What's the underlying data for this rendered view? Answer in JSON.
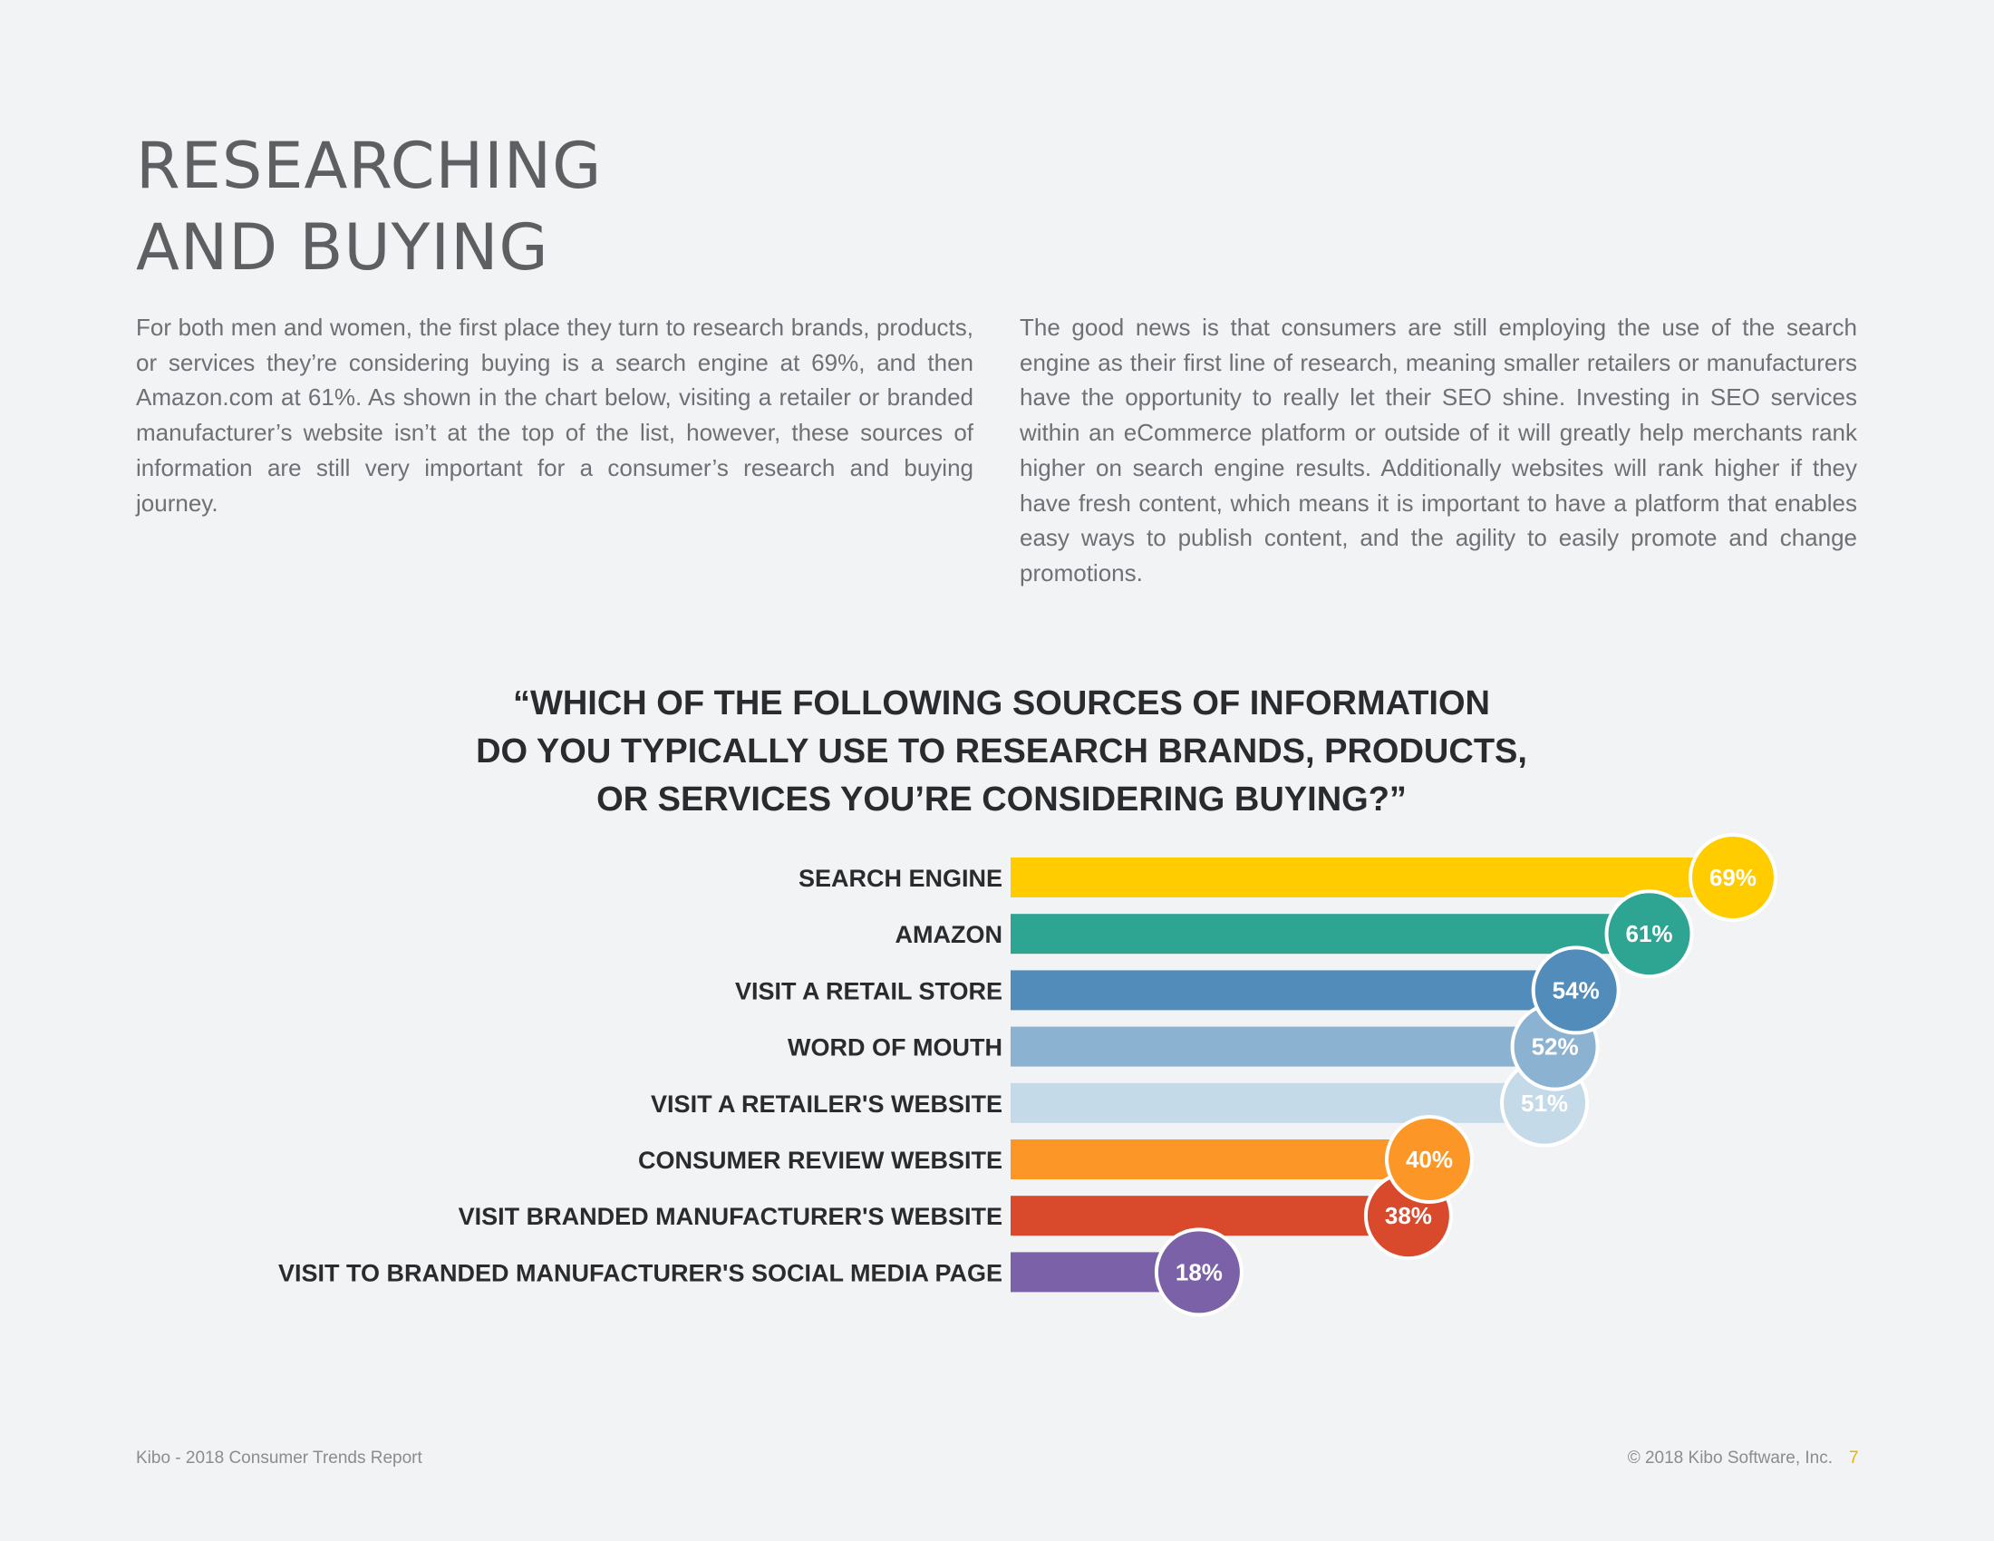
{
  "page": {
    "title_lines": [
      "RESEARCHING",
      "AND BUYING"
    ],
    "paragraph_left": "For both men and women, the first place they turn to research brands, products, or services they’re considering buying is a search engine at 69%, and then Amazon.com at 61%. As shown in the chart below, visiting a retailer or branded manufacturer’s website isn’t at the top of the list, however, these sources of information are still very important for a consumer’s research and buying journey.",
    "paragraph_right": "The good news is that consumers are still employing the use of the search engine as their first line of research, meaning smaller retailers or manufacturers have the opportunity to really let their SEO shine. Investing in SEO services within an eCommerce platform or outside of it will greatly help merchants rank higher on search engine results. Additionally websites will rank higher if they have fresh content, which means it is important to have a platform that enables easy ways to publish content, and the agility to easily promote and change  promotions."
  },
  "chart_data": {
    "type": "bar",
    "orientation": "horizontal",
    "title_lines": [
      "“WHICH OF THE FOLLOWING SOURCES OF INFORMATION",
      "DO YOU TYPICALLY USE TO RESEARCH BRANDS, PRODUCTS,",
      "OR SERVICES YOU’RE CONSIDERING BUYING?”"
    ],
    "categories": [
      "SEARCH ENGINE",
      "AMAZON",
      "VISIT A RETAIL STORE",
      "WORD OF MOUTH",
      "VISIT A RETAILER'S WEBSITE",
      "CONSUMER REVIEW WEBSITE",
      "VISIT BRANDED MANUFACTURER'S WEBSITE",
      "VISIT TO BRANDED MANUFACTURER'S SOCIAL MEDIA PAGE"
    ],
    "values": [
      69,
      61,
      54,
      52,
      51,
      40,
      38,
      18
    ],
    "value_labels": [
      "69%",
      "61%",
      "54%",
      "52%",
      "51%",
      "40%",
      "38%",
      "18%"
    ],
    "colors": [
      "#ffcc00",
      "#2ea592",
      "#528cbb",
      "#8cb2d2",
      "#c5dae8",
      "#fc9626",
      "#d84a2b",
      "#7a61a8"
    ],
    "xlim": [
      0,
      100
    ],
    "grid": false,
    "legend": "none"
  },
  "footer": {
    "left": "Kibo - 2018 Consumer Trends Report",
    "right": "© 2018 Kibo Software, Inc.",
    "page_number": "7"
  }
}
